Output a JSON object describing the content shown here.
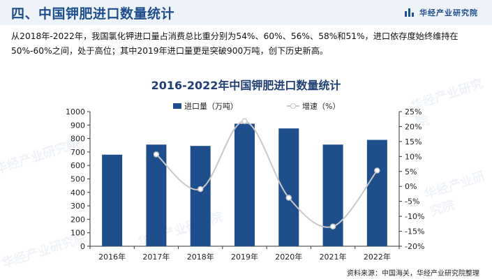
{
  "header": {
    "title": "四、中国钾肥进口数量统计",
    "brand": "华经产业研究院"
  },
  "description": "从2018年-2022年，我国氯化钾进口量占消费总比重分别为54%、60%、56%、58%和51%，进口依存度始终维持在50%-60%之间，处于高位；其中2019年进口量更是突破900万吨，创下历史新高。",
  "watermark": "华经产业研究院",
  "colors": {
    "bar": "#1f4e8c",
    "line": "#c8c8c8",
    "title": "#1f4e8c"
  },
  "chart_data": {
    "type": "bar",
    "title": "2016-2022年中国钾肥进口数量统计",
    "categories": [
      "2016年",
      "2017年",
      "2018年",
      "2019年",
      "2020年",
      "2021年",
      "2022年"
    ],
    "series": [
      {
        "name": "进口量（万吨）",
        "type": "bar",
        "axis": "left",
        "values": [
          680,
          755,
          745,
          910,
          875,
          755,
          790
        ]
      },
      {
        "name": "增速（%）",
        "type": "line",
        "axis": "right",
        "values": [
          null,
          10.7,
          -0.9,
          21.8,
          -3.8,
          -13.4,
          5.3
        ]
      }
    ],
    "y_left": {
      "min": 0,
      "max": 1000,
      "step": 100
    },
    "y_right": {
      "min": -20,
      "max": 25,
      "step": 5,
      "tick_suffix": "%"
    },
    "legend": "top-center",
    "grid": false
  },
  "source": "资料来源：中国海关，华经产业研究院整理"
}
